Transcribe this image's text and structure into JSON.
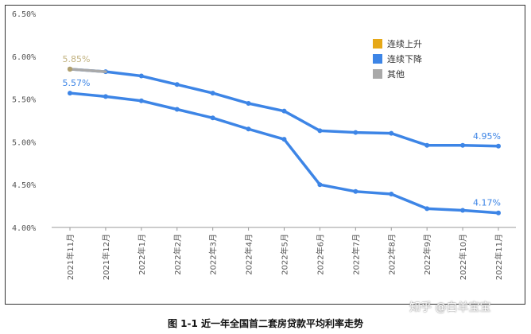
{
  "chart_data": {
    "type": "line",
    "title": "",
    "xlabel": "",
    "ylabel": "",
    "categories": [
      "2021年11月",
      "2021年12月",
      "2022年1月",
      "2022年2月",
      "2022年3月",
      "2022年4月",
      "2022年5月",
      "2022年6月",
      "2022年7月",
      "2022年8月",
      "2022年9月",
      "2022年10月",
      "2022年11月"
    ],
    "yticks": [
      "4.00%",
      "4.50%",
      "5.00%",
      "5.50%",
      "6.00%",
      "6.50%"
    ],
    "ylim": [
      4.0,
      6.5
    ],
    "grid": false,
    "legend_position": "top-right",
    "series": [
      {
        "key": "first",
        "color": "#3d85e6",
        "values": [
          5.85,
          5.82,
          5.77,
          5.67,
          5.57,
          5.45,
          5.36,
          5.13,
          5.11,
          5.1,
          4.96,
          4.96,
          4.95
        ]
      },
      {
        "key": "second",
        "color": "#3d85e6",
        "values": [
          5.57,
          5.53,
          5.48,
          5.38,
          5.28,
          5.15,
          5.03,
          4.5,
          4.42,
          4.39,
          4.22,
          4.2,
          4.17
        ]
      }
    ],
    "other_segment": {
      "color": "#a9a9a9",
      "from_index": 0,
      "to_index": 1,
      "series_key": "first"
    },
    "data_labels": [
      {
        "text": "5.85%",
        "series_key": "first",
        "index": 0,
        "color": "#c2b280"
      },
      {
        "text": "5.57%",
        "series_key": "second",
        "index": 0,
        "color": "#3d85e6"
      },
      {
        "text": "4.95%",
        "series_key": "first",
        "index": 12,
        "color": "#3d85e6"
      },
      {
        "text": "4.17%",
        "series_key": "second",
        "index": 12,
        "color": "#3d85e6"
      }
    ],
    "legend": [
      {
        "label": "连续上升",
        "color": "#e6a817"
      },
      {
        "label": "连续下降",
        "color": "#3d85e6"
      },
      {
        "label": "其他",
        "color": "#a9a9a9"
      }
    ]
  },
  "caption": "图 1-1  近一年全国首二套房贷款平均利率走势",
  "watermark": "知乎 @白羊宝宝"
}
